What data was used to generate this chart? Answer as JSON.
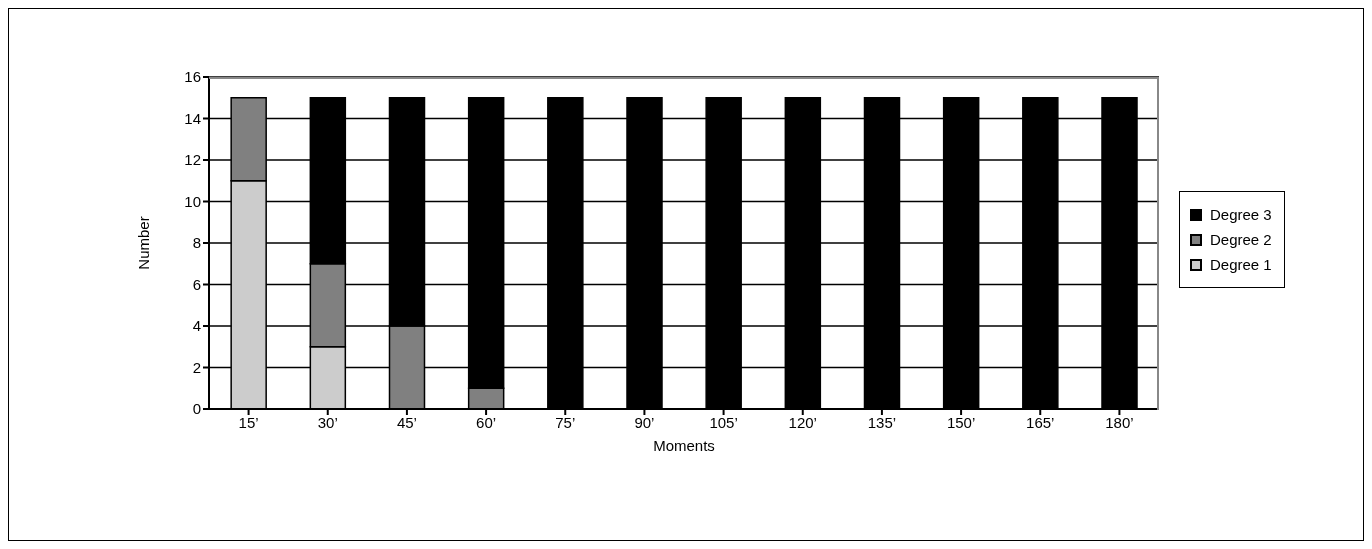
{
  "chart_data": {
    "type": "bar",
    "stacked": true,
    "xlabel": "Moments",
    "ylabel": "Number",
    "categories": [
      "15’",
      "30’",
      "45’",
      "60’",
      "75’",
      "90’",
      "105’",
      "120’",
      "135’",
      "150’",
      "165’",
      "180’"
    ],
    "series": [
      {
        "name": "Degree 1",
        "color": "#cccccc",
        "values": [
          11,
          3,
          0,
          0,
          0,
          0,
          0,
          0,
          0,
          0,
          0,
          0
        ]
      },
      {
        "name": "Degree 2",
        "color": "#808080",
        "values": [
          4,
          4,
          4,
          1,
          0,
          0,
          0,
          0,
          0,
          0,
          0,
          0
        ]
      },
      {
        "name": "Degree 3",
        "color": "#000000",
        "values": [
          0,
          8,
          11,
          14,
          15,
          15,
          15,
          15,
          15,
          15,
          15,
          15
        ]
      }
    ],
    "ylim": [
      0,
      16
    ],
    "yticks": [
      0,
      2,
      4,
      6,
      8,
      10,
      12,
      14,
      16
    ],
    "grid": "y",
    "legend": "right"
  }
}
